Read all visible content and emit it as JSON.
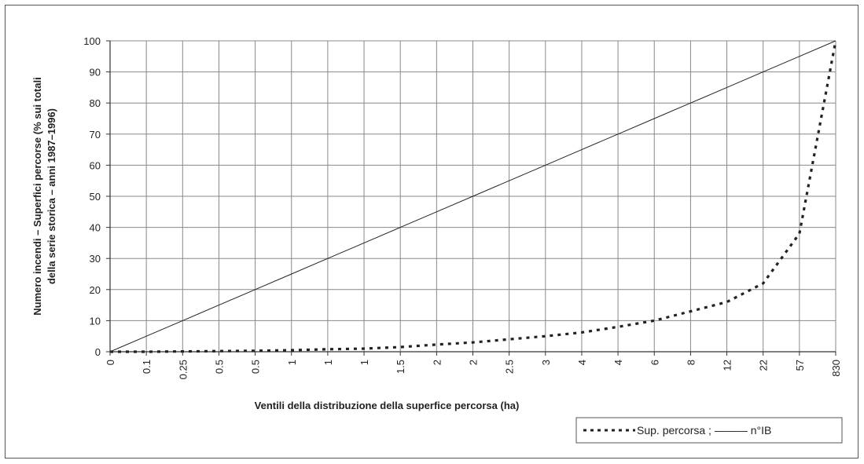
{
  "chart_data": {
    "type": "line",
    "title": "",
    "ylabel_line1": "Numero incendi – Superfici percorse (% sui totali",
    "ylabel_line2": "della serie storica – anni 1987–1996)",
    "xlabel": "Ventili della distribuzione della superfice percorsa (ha)",
    "ylim": [
      0,
      100
    ],
    "yticks": [
      0,
      10,
      20,
      30,
      40,
      50,
      60,
      70,
      80,
      90,
      100
    ],
    "categories": [
      "0",
      "0.1",
      "0.25",
      "0.5",
      "0.5",
      "1",
      "1",
      "1",
      "1.5",
      "2",
      "2",
      "2.5",
      "3",
      "4",
      "4",
      "6",
      "8",
      "12",
      "22",
      "57",
      "830"
    ],
    "grid": true,
    "legend_position": "bottom-right",
    "legend_text": "Sup. percorsa ;  ——— n°IB",
    "series": [
      {
        "name": "Sup. percorsa",
        "style": "dotted",
        "values": [
          0,
          0,
          0.1,
          0.2,
          0.3,
          0.5,
          0.8,
          1.0,
          1.5,
          2.3,
          3.0,
          4.0,
          5.0,
          6.2,
          8.0,
          10.0,
          13.0,
          16.0,
          22.0,
          38.0,
          100.0
        ]
      },
      {
        "name": "n°IB",
        "style": "solid",
        "values": [
          0,
          5,
          10,
          15,
          20,
          25,
          30,
          35,
          40,
          45,
          50,
          55,
          60,
          65,
          70,
          75,
          80,
          85,
          90,
          95,
          100
        ]
      }
    ]
  }
}
